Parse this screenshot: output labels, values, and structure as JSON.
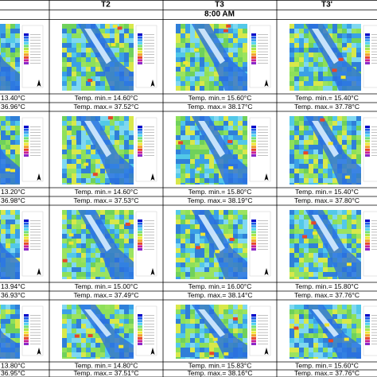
{
  "header": {
    "columns": [
      "T2",
      "T3",
      "T3'"
    ],
    "time": "8:00 AM"
  },
  "rows": [
    {
      "cells": [
        {
          "min": "13.40°C",
          "max": "36.96°C"
        },
        {
          "min": "Temp. min.= 14.60°C",
          "max": "Temp. max.= 37.52°C"
        },
        {
          "min": "Temp. min.= 15.60°C",
          "max": "Temp. max.= 38.17°C"
        },
        {
          "min": "Temp. min.= 15.40°C",
          "max": "Temp. max.= 37.78°C"
        }
      ]
    },
    {
      "cells": [
        {
          "min": "13.20°C",
          "max": "36.98°C"
        },
        {
          "min": "Temp. min.= 14.60°C",
          "max": "Temp. max.= 37.53°C"
        },
        {
          "min": "Temp. min.= 15.80°C",
          "max": "Temp. max.= 38.19°C"
        },
        {
          "min": "Temp. min.= 15.40°C",
          "max": "Temp. max.= 37.80°C"
        }
      ]
    },
    {
      "cells": [
        {
          "min": "13.94°C",
          "max": "36.93°C"
        },
        {
          "min": "Temp. min.= 15.00°C",
          "max": "Temp. max.= 37.49°C"
        },
        {
          "min": "Temp. min.= 16.00°C",
          "max": "Temp. max.= 38.14°C"
        },
        {
          "min": "Temp. min.= 15.80°C",
          "max": "Temp. max.= 37.76°C"
        }
      ]
    },
    {
      "cells": [
        {
          "min": "13.80°C",
          "max": "36.95°C"
        },
        {
          "min": "Temp. min.= 14.80°C",
          "max": "Temp. max.= 37.51°C"
        },
        {
          "min": "Temp. min.= 15.83°C",
          "max": "Temp. max.= 38.16°C"
        },
        {
          "min": "Temp. min.= 15.60°C",
          "max": "Temp. max.= 37.76°C"
        }
      ]
    }
  ]
}
